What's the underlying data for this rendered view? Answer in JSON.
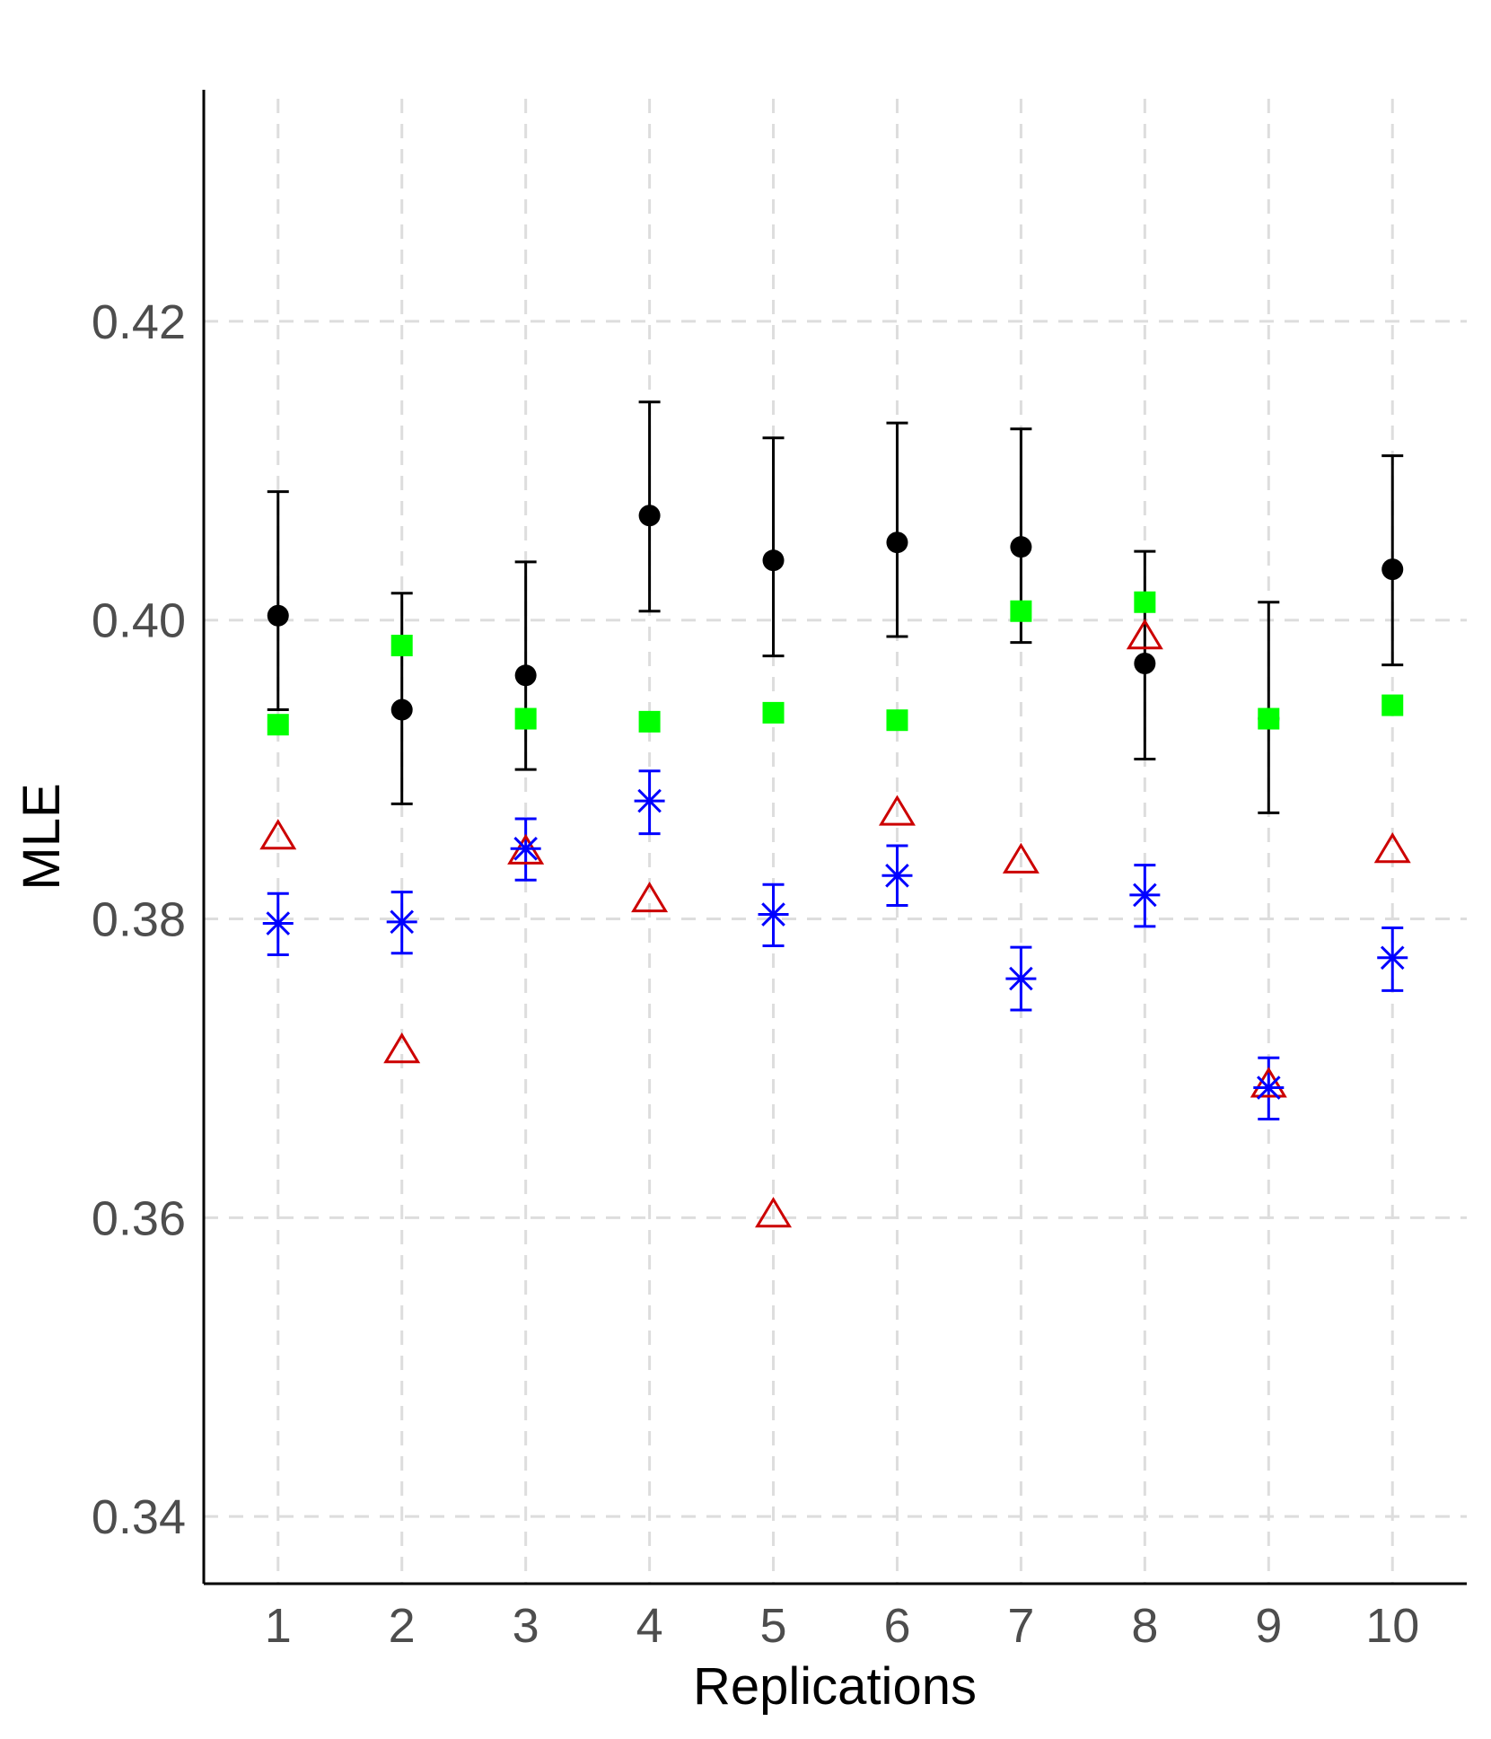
{
  "chart_data": {
    "type": "scatter",
    "xlabel": "Replications",
    "ylabel": "MLE",
    "x": [
      1,
      2,
      3,
      4,
      5,
      6,
      7,
      8,
      9,
      10
    ],
    "xlim": [
      0.4,
      10.6
    ],
    "ylim": [
      0.3355,
      0.4355
    ],
    "yticks": [
      0.34,
      0.36,
      0.38,
      0.4,
      0.42
    ],
    "ytick_labels": [
      "0.34",
      "0.36",
      "0.38",
      "0.40",
      "0.42"
    ],
    "xtick_labels": [
      "1",
      "2",
      "3",
      "4",
      "5",
      "6",
      "7",
      "8",
      "9",
      "10"
    ],
    "grid": true,
    "legend": "none",
    "series": [
      {
        "marker": "filled-circle",
        "color": "#000000",
        "values": [
          0.4003,
          0.394,
          0.3963,
          0.407,
          0.404,
          0.4052,
          0.4049,
          0.3971,
          0.3934,
          0.4034
        ],
        "lower": [
          0.394,
          0.3877,
          0.39,
          0.4006,
          0.3976,
          0.3989,
          0.3985,
          0.3907,
          0.3871,
          0.397
        ],
        "upper": [
          0.4086,
          0.4018,
          0.4039,
          0.4146,
          0.4122,
          0.4132,
          0.4128,
          0.4046,
          0.4012,
          0.411
        ]
      },
      {
        "marker": "filled-square",
        "color": "#00ff00",
        "values": [
          0.393,
          0.3983,
          0.3934,
          0.3932,
          0.3938,
          0.3933,
          0.4006,
          0.4012,
          0.3934,
          0.3943
        ]
      },
      {
        "marker": "open-triangle",
        "color": "#cc0000",
        "values": [
          0.3855,
          0.3712,
          0.3845,
          0.3813,
          0.3602,
          0.3871,
          0.3839,
          0.3989,
          0.3689,
          0.3846
        ]
      },
      {
        "marker": "asterisk",
        "color": "#0000ff",
        "values": [
          0.3797,
          0.3798,
          0.3847,
          0.3879,
          0.3803,
          0.3829,
          0.376,
          0.3816,
          0.3687,
          0.3774
        ],
        "lower": [
          0.3776,
          0.3777,
          0.3826,
          0.3857,
          0.3782,
          0.3809,
          0.3739,
          0.3795,
          0.3666,
          0.3752
        ],
        "upper": [
          0.3817,
          0.3818,
          0.3867,
          0.3899,
          0.3823,
          0.3849,
          0.3781,
          0.3836,
          0.3707,
          0.3794
        ]
      }
    ]
  }
}
